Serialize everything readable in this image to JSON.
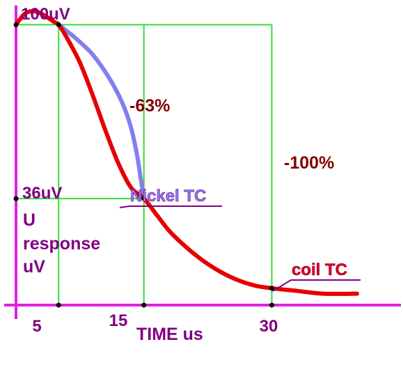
{
  "chart_data": {
    "type": "line",
    "xlabel": "TIME us",
    "ylabel_lines": [
      "U",
      "response",
      "uV"
    ],
    "x_ticks": [
      {
        "value": 5,
        "label": "5"
      },
      {
        "value": 15,
        "label": "15"
      },
      {
        "value": 30,
        "label": "30"
      }
    ],
    "y_labels": [
      {
        "value": 100,
        "label": "100uV"
      },
      {
        "value": 36,
        "label": "36uV"
      }
    ],
    "annotations": {
      "drop_63": "-63%",
      "drop_100": "-100%"
    },
    "xlim": [
      0,
      43
    ],
    "ylim": [
      0,
      100
    ],
    "series": [
      {
        "name": "coil TC",
        "color": "#e60000",
        "points": [
          [
            0,
            100
          ],
          [
            1,
            104
          ],
          [
            2,
            105
          ],
          [
            3,
            104
          ],
          [
            4.5,
            101
          ],
          [
            5,
            100
          ],
          [
            6,
            95
          ],
          [
            7.5,
            86
          ],
          [
            9,
            74
          ],
          [
            10.5,
            61
          ],
          [
            12,
            49
          ],
          [
            13.5,
            40
          ],
          [
            15,
            36
          ],
          [
            16.5,
            30
          ],
          [
            18,
            24
          ],
          [
            20,
            18
          ],
          [
            22,
            13
          ],
          [
            24,
            9
          ],
          [
            26,
            6
          ],
          [
            28,
            4
          ],
          [
            30,
            3
          ],
          [
            33,
            2
          ],
          [
            36,
            1
          ],
          [
            40,
            1
          ]
        ]
      },
      {
        "name": "Nickel TC",
        "color": "#8080ee",
        "points": [
          [
            5,
            100
          ],
          [
            7,
            95
          ],
          [
            9,
            89
          ],
          [
            11,
            80
          ],
          [
            12.5,
            71
          ],
          [
            13.5,
            62
          ],
          [
            14.2,
            52
          ],
          [
            14.6,
            44
          ],
          [
            15,
            36
          ]
        ]
      }
    ],
    "guide_color": "#33dd33",
    "axis_color": "#e020e0",
    "label_color": "#800080",
    "annotation_color": "#800000"
  }
}
